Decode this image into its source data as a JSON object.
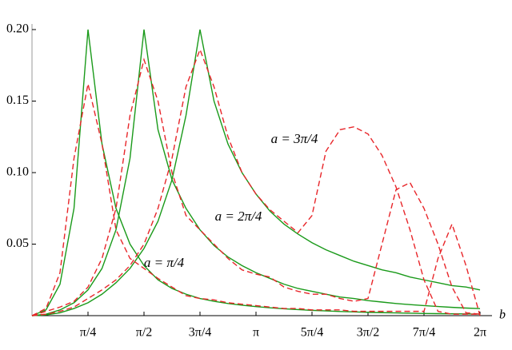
{
  "chart_data": {
    "type": "line",
    "x": [
      0,
      0.1963,
      0.3927,
      0.589,
      0.7854,
      0.9817,
      1.1781,
      1.3744,
      1.5708,
      1.7671,
      1.9635,
      2.1598,
      2.3562,
      2.5525,
      2.7489,
      2.9452,
      3.1416,
      3.3379,
      3.5343,
      3.7306,
      3.927,
      4.1233,
      4.3197,
      4.516,
      4.7124,
      4.9087,
      5.1051,
      5.3014,
      5.4978,
      5.6941,
      5.8905,
      6.0868,
      6.2832
    ],
    "series": [
      {
        "color": "#1a9a1a",
        "dashed": false,
        "values": [
          0,
          0.004,
          0.022,
          0.075,
          0.2,
          0.12,
          0.075,
          0.05,
          0.035,
          0.025,
          0.019,
          0.015,
          0.012,
          0.01,
          0.0085,
          0.0073,
          0.0063,
          0.0055,
          0.0048,
          0.0042,
          0.0037,
          0.0033,
          0.0029,
          0.0026,
          0.0023,
          0.0021,
          0.0019,
          0.0017,
          0.0015,
          0.0014,
          0.0013,
          0.0012,
          0.0011
        ]
      },
      {
        "color": "#1a9a1a",
        "dashed": false,
        "values": [
          0,
          0.001,
          0.004,
          0.009,
          0.018,
          0.033,
          0.06,
          0.11,
          0.2,
          0.13,
          0.095,
          0.075,
          0.06,
          0.049,
          0.041,
          0.035,
          0.03,
          0.026,
          0.022,
          0.019,
          0.017,
          0.015,
          0.013,
          0.012,
          0.0105,
          0.0095,
          0.0085,
          0.0077,
          0.007,
          0.0064,
          0.0058,
          0.0053,
          0.0049
        ]
      },
      {
        "color": "#1a9a1a",
        "dashed": false,
        "values": [
          0,
          0.0005,
          0.002,
          0.005,
          0.009,
          0.015,
          0.023,
          0.033,
          0.047,
          0.066,
          0.095,
          0.14,
          0.2,
          0.15,
          0.12,
          0.1,
          0.085,
          0.073,
          0.064,
          0.057,
          0.051,
          0.046,
          0.042,
          0.038,
          0.035,
          0.032,
          0.03,
          0.027,
          0.025,
          0.023,
          0.021,
          0.02,
          0.018
        ]
      },
      {
        "color": "#e8262a",
        "dashed": true,
        "values": [
          0,
          0.005,
          0.03,
          0.11,
          0.162,
          0.12,
          0.06,
          0.04,
          0.033,
          0.026,
          0.02,
          0.014,
          0.012,
          0.011,
          0.009,
          0.008,
          0.007,
          0.006,
          0.005,
          0.005,
          0.004,
          0.004,
          0.004,
          0.003,
          0.003,
          0.003,
          0.003,
          0.003,
          0.003,
          0.04,
          0.064,
          0.035,
          0
        ]
      },
      {
        "color": "#e8262a",
        "dashed": true,
        "values": [
          0,
          0.003,
          0.006,
          0.01,
          0.02,
          0.04,
          0.075,
          0.14,
          0.179,
          0.15,
          0.1,
          0.07,
          0.06,
          0.05,
          0.04,
          0.032,
          0.029,
          0.027,
          0.02,
          0.017,
          0.015,
          0.015,
          0.012,
          0.01,
          0.012,
          0.05,
          0.088,
          0.093,
          0.075,
          0.05,
          0.02,
          0.002,
          0.001
        ]
      },
      {
        "color": "#e8262a",
        "dashed": true,
        "values": [
          0,
          0.001,
          0.003,
          0.006,
          0.012,
          0.018,
          0.025,
          0.035,
          0.05,
          0.075,
          0.11,
          0.16,
          0.186,
          0.16,
          0.125,
          0.1,
          0.085,
          0.074,
          0.066,
          0.058,
          0.07,
          0.115,
          0.13,
          0.132,
          0.127,
          0.112,
          0.09,
          0.06,
          0.025,
          0.003,
          0.001,
          0.001,
          0.001
        ]
      }
    ],
    "xlim": [
      0,
      6.2832
    ],
    "ylim": [
      0,
      0.2
    ],
    "xticks": [
      {
        "value": 0.7854,
        "label": "π/4"
      },
      {
        "value": 1.5708,
        "label": "π/2"
      },
      {
        "value": 2.3562,
        "label": "3π/4"
      },
      {
        "value": 3.1416,
        "label": "π"
      },
      {
        "value": 3.927,
        "label": "5π/4"
      },
      {
        "value": 4.7124,
        "label": "3π/2"
      },
      {
        "value": 5.4978,
        "label": "7π/4"
      },
      {
        "value": 6.2832,
        "label": "2π"
      }
    ],
    "yticks": [
      {
        "value": 0.05,
        "label": "0.05"
      },
      {
        "value": 0.1,
        "label": "0.10"
      },
      {
        "value": 0.15,
        "label": "0.15"
      },
      {
        "value": 0.2,
        "label": "0.20"
      }
    ],
    "x_label": "b",
    "annotations": [
      "a = 3π/4",
      "a = 2π/4",
      "a = π/4"
    ]
  }
}
